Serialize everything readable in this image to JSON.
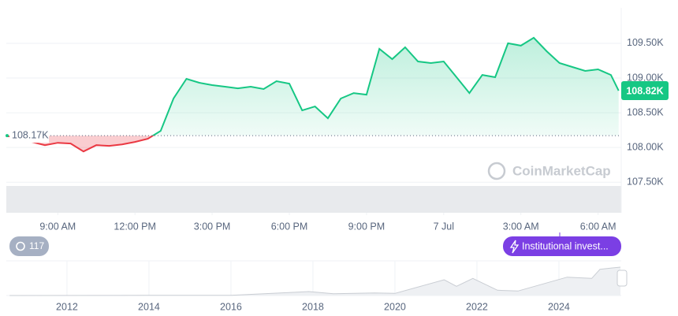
{
  "chart_data": [
    {
      "type": "line",
      "x": [
        7.0,
        8.5,
        9.0,
        9.5,
        10.0,
        10.5,
        11.0,
        11.5,
        12.0,
        12.5,
        13.0,
        13.5,
        14.0,
        14.5,
        15.0,
        15.5,
        16.0,
        16.5,
        17.0,
        17.5,
        18.0,
        18.5,
        19.0,
        19.5,
        20.0,
        20.5,
        21.0,
        21.5,
        22.0,
        22.5,
        23.0,
        23.5,
        24.0,
        24.5,
        25.0,
        25.5,
        26.0,
        26.5,
        27.0,
        27.5,
        28.0,
        28.5,
        29.0,
        29.5,
        30.0,
        30.5,
        30.8
      ],
      "series": [
        {
          "color": "#16c784",
          "below_color": "#ea3943",
          "values": [
            108170,
            108034,
            108068,
            108057,
            107943,
            108034,
            108023,
            108045,
            108080,
            108125,
            108239,
            108705,
            108989,
            108932,
            108898,
            108875,
            108852,
            108875,
            108841,
            108955,
            108920,
            108534,
            108591,
            108420,
            108705,
            108784,
            108761,
            109420,
            109273,
            109443,
            109239,
            109216,
            109239,
            109011,
            108784,
            109045,
            109011,
            109500,
            109466,
            109580,
            109386,
            109216,
            109159,
            109102,
            109125,
            109045,
            108818
          ]
        }
      ],
      "xlim": [
        7.0,
        30.9
      ],
      "xticks": [
        {
          "value": 9,
          "label": "9:00 AM"
        },
        {
          "value": 12,
          "label": "12:00 PM"
        },
        {
          "value": 15,
          "label": "3:00 PM"
        },
        {
          "value": 18,
          "label": "6:00 PM"
        },
        {
          "value": 21,
          "label": "9:00 PM"
        },
        {
          "value": 24,
          "label": "7 Jul"
        },
        {
          "value": 27,
          "label": "3:00 AM"
        },
        {
          "value": 30,
          "label": "6:00 AM"
        }
      ],
      "ylim": [
        107060,
        110010
      ],
      "yticks": [
        {
          "value": 107500,
          "label": "107.50K"
        },
        {
          "value": 108000,
          "label": "108.00K"
        },
        {
          "value": 108500,
          "label": "108.50K"
        },
        {
          "value": 109000,
          "label": "109.00K"
        },
        {
          "value": 109500,
          "label": "109.50K"
        }
      ],
      "grid": true,
      "baseline": {
        "value": 108170,
        "label": "108.17K"
      },
      "current_price": {
        "value": 108818,
        "label": "108.82K"
      },
      "watermark": "CoinMarketCap",
      "history_count": 117,
      "event_label": "Institutional invest..."
    },
    {
      "type": "area",
      "x": [
        2010.6,
        2013.0,
        2013.9,
        2016.0,
        2017.9,
        2018.5,
        2019.5,
        2020.0,
        2021.2,
        2021.5,
        2021.9,
        2022.5,
        2023.0,
        2024.2,
        2024.8,
        2025.0,
        2025.3,
        2025.5
      ],
      "values": [
        0,
        200,
        1000,
        500,
        15000,
        7000,
        10000,
        8000,
        60000,
        35000,
        65000,
        20000,
        17000,
        70000,
        65000,
        100000,
        105000,
        108000
      ],
      "xlim": [
        2010.52,
        2025.52
      ],
      "ylim": [
        0,
        120000
      ],
      "xticks": [
        2012,
        2014,
        2016,
        2018,
        2020,
        2022,
        2024
      ],
      "color": "#c9cdd3"
    }
  ]
}
